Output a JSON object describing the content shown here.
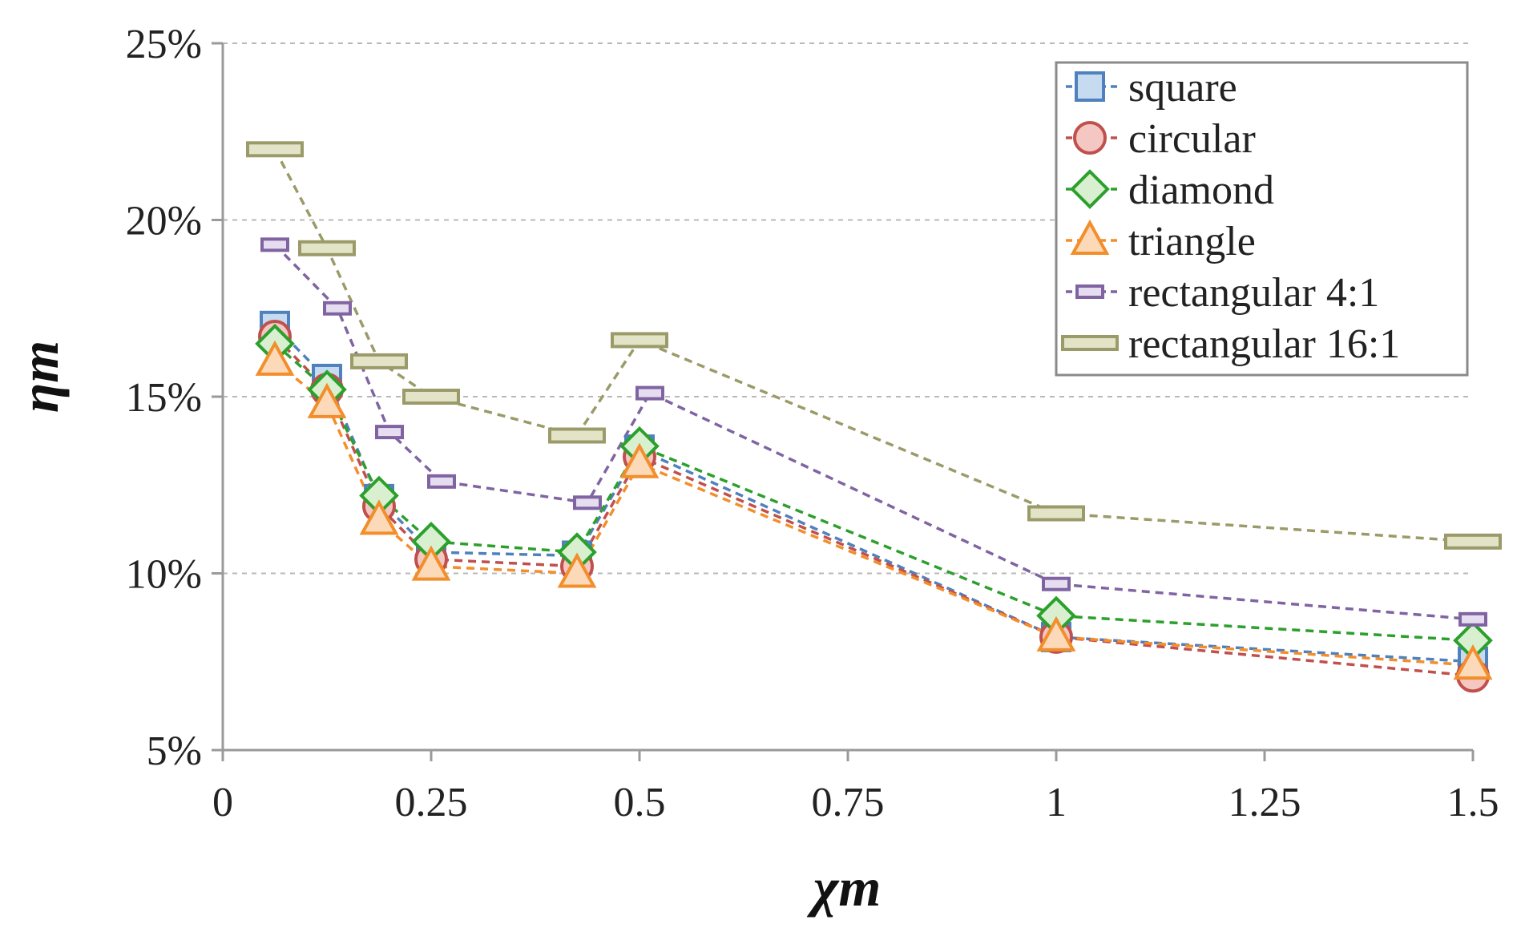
{
  "chart_data": {
    "type": "line",
    "title": "",
    "xlabel": "χm",
    "ylabel": "ηm",
    "xlim": [
      0,
      1.5
    ],
    "ylim": [
      5,
      25
    ],
    "x_ticks": [
      0,
      0.25,
      0.5,
      0.75,
      1,
      1.25,
      1.5
    ],
    "x_tick_labels": [
      "0",
      "0.25",
      "0.5",
      "0.75",
      "1",
      "1.25",
      "1.5"
    ],
    "y_ticks": [
      5,
      10,
      15,
      20,
      25
    ],
    "y_tick_labels": [
      "5%",
      "10%",
      "15%",
      "20%",
      "25%"
    ],
    "grid": "horizontal dashed",
    "legend_position": "top-right",
    "series": [
      {
        "name": "square",
        "marker": "square",
        "color": "#4f81bd",
        "fill": "#c6dbef",
        "x": [
          0.0625,
          0.125,
          0.1875,
          0.25,
          0.425,
          0.5,
          1,
          1.5
        ],
        "y": [
          17.0,
          15.5,
          12.1,
          10.6,
          10.5,
          13.5,
          8.2,
          7.5
        ]
      },
      {
        "name": "circular",
        "marker": "circle",
        "color": "#c0504d",
        "fill": "#f4c7c3",
        "x": [
          0.0625,
          0.125,
          0.1875,
          0.25,
          0.425,
          0.5,
          1,
          1.5
        ],
        "y": [
          16.7,
          15.2,
          11.9,
          10.4,
          10.2,
          13.3,
          8.2,
          7.1
        ]
      },
      {
        "name": "diamond",
        "marker": "diamond",
        "color": "#2ca02c",
        "fill": "#d8f0d0",
        "x": [
          0.0625,
          0.125,
          0.1875,
          0.25,
          0.425,
          0.5,
          1,
          1.5
        ],
        "y": [
          16.5,
          15.2,
          12.2,
          10.9,
          10.6,
          13.6,
          8.8,
          8.1
        ]
      },
      {
        "name": "triangle",
        "marker": "triangle",
        "color": "#f28e2b",
        "fill": "#fcd9b8",
        "x": [
          0.0625,
          0.125,
          0.1875,
          0.25,
          0.425,
          0.5,
          1,
          1.5
        ],
        "y": [
          16.0,
          14.8,
          11.5,
          10.2,
          10.0,
          13.1,
          8.2,
          7.4
        ]
      },
      {
        "name": "rectangular 4:1",
        "marker": "rect-4-1",
        "color": "#8064a2",
        "fill": "#e6ddf0",
        "x": [
          0.0625,
          0.1375,
          0.2,
          0.2625,
          0.4375,
          0.5125,
          1,
          1.5
        ],
        "y": [
          19.3,
          17.5,
          14.0,
          12.6,
          12.0,
          15.1,
          9.7,
          8.7
        ]
      },
      {
        "name": "rectangular 16:1",
        "marker": "rect-16-1",
        "color": "#9b9b6a",
        "fill": "#e3e3c8",
        "x": [
          0.0625,
          0.125,
          0.1875,
          0.25,
          0.425,
          0.5,
          1,
          1.5
        ],
        "y": [
          22.0,
          19.2,
          16.0,
          15.0,
          13.9,
          16.6,
          11.7,
          10.9
        ]
      }
    ]
  }
}
